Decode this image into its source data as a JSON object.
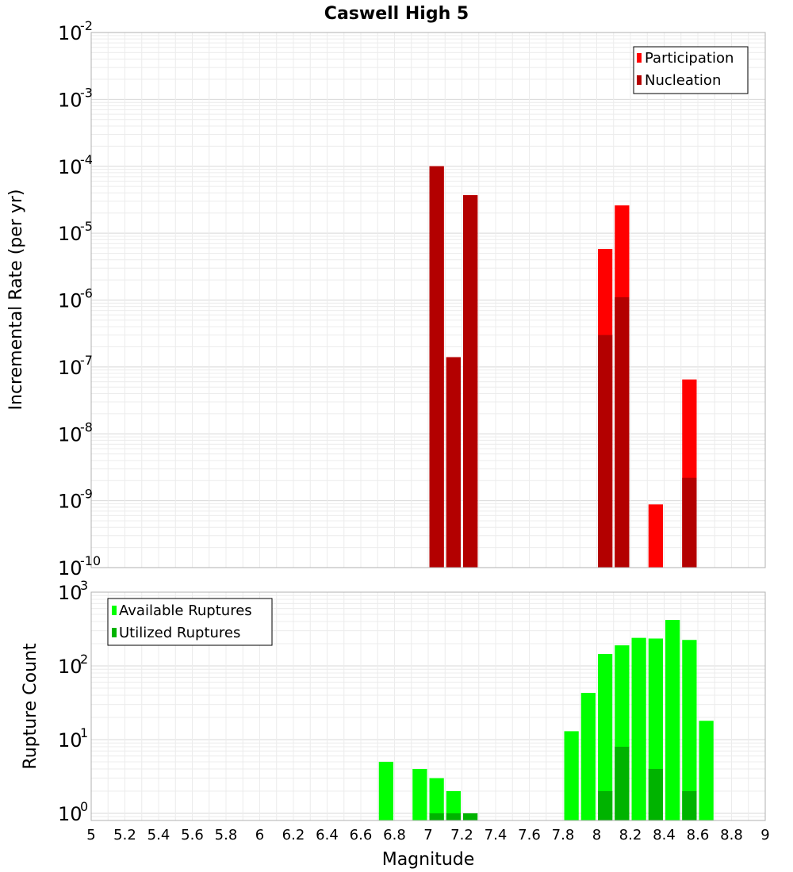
{
  "chart_data": [
    {
      "type": "bar",
      "title": "Caswell High 5",
      "xlabel": "",
      "ylabel": "Incremental Rate (per yr)",
      "yscale": "log",
      "ylim": [
        1e-10,
        0.01
      ],
      "xlim": [
        5,
        9
      ],
      "bar_width": 0.1,
      "y_ticks": [
        {
          "base": "10",
          "exp": "-10"
        },
        {
          "base": "10",
          "exp": "-9"
        },
        {
          "base": "10",
          "exp": "-8"
        },
        {
          "base": "10",
          "exp": "-7"
        },
        {
          "base": "10",
          "exp": "-6"
        },
        {
          "base": "10",
          "exp": "-5"
        },
        {
          "base": "10",
          "exp": "-4"
        },
        {
          "base": "10",
          "exp": "-3"
        },
        {
          "base": "10",
          "exp": "-2"
        }
      ],
      "legend_position": "top-right",
      "series": [
        {
          "name": "Participation",
          "color": "#ff0000",
          "x": [
            7.05,
            7.15,
            7.25,
            8.05,
            8.15,
            8.35,
            8.55
          ],
          "values": [
            0.0001,
            1.4e-07,
            3.7e-05,
            5.8e-06,
            2.6e-05,
            8.8e-10,
            6.5e-08
          ]
        },
        {
          "name": "Nucleation",
          "color": "#b30000",
          "x": [
            7.05,
            7.15,
            7.25,
            8.05,
            8.15,
            8.55
          ],
          "values": [
            0.0001,
            1.4e-07,
            3.7e-05,
            3e-07,
            1.1e-06,
            2.2e-09
          ]
        }
      ]
    },
    {
      "type": "bar",
      "title": "",
      "xlabel": "Magnitude",
      "ylabel": "Rupture Count",
      "yscale": "log",
      "ylim": [
        0.8,
        1000
      ],
      "xlim": [
        5,
        9
      ],
      "bar_width": 0.1,
      "y_ticks": [
        {
          "base": "10",
          "exp": "0"
        },
        {
          "base": "10",
          "exp": "1"
        },
        {
          "base": "10",
          "exp": "2"
        },
        {
          "base": "10",
          "exp": "3"
        }
      ],
      "x_tick_labels": [
        "5",
        "5.2",
        "5.4",
        "5.6",
        "5.8",
        "6",
        "6.2",
        "6.4",
        "6.6",
        "6.8",
        "7",
        "7.2",
        "7.4",
        "7.6",
        "7.8",
        "8",
        "8.2",
        "8.4",
        "8.6",
        "8.8",
        "9"
      ],
      "legend_position": "top-left",
      "series": [
        {
          "name": "Available Ruptures",
          "color": "#00ff00",
          "x": [
            6.75,
            6.95,
            7.05,
            7.15,
            7.85,
            7.95,
            8.05,
            8.15,
            8.25,
            8.35,
            8.45,
            8.55,
            8.65
          ],
          "values": [
            5,
            4,
            3,
            2,
            13,
            43,
            145,
            190,
            240,
            235,
            420,
            225,
            18
          ]
        },
        {
          "name": "Utilized Ruptures",
          "color": "#00b300",
          "x": [
            7.05,
            7.15,
            7.25,
            8.05,
            8.15,
            8.35,
            8.55
          ],
          "values": [
            1,
            1,
            1,
            2,
            8,
            4,
            2
          ]
        }
      ]
    }
  ]
}
